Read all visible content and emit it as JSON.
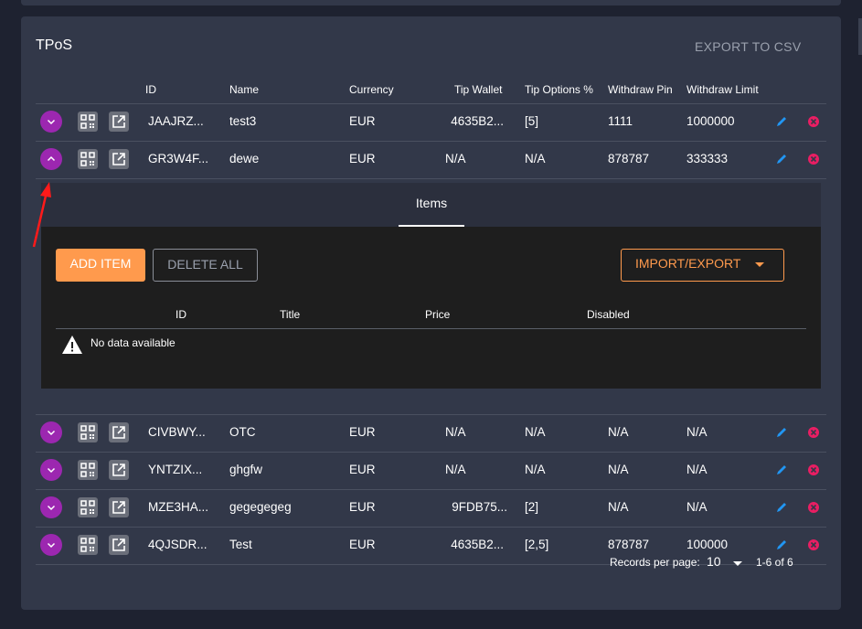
{
  "card": {
    "title": "TPoS",
    "export_label": "EXPORT TO CSV"
  },
  "table": {
    "headers": [
      "ID",
      "Name",
      "Currency",
      "Tip Wallet",
      "Tip Options %",
      "Withdraw Pin",
      "Withdraw Limit"
    ],
    "rows": [
      {
        "id": "JAAJRZ...",
        "name": "test3",
        "currency": "EUR",
        "tip_wallet": "4635B2...",
        "tip_options": "[5]",
        "withdraw_pin": "1111",
        "withdraw_limit": "1000000"
      },
      {
        "id": "GR3W4F...",
        "name": "dewe",
        "currency": "EUR",
        "tip_wallet": "N/A",
        "tip_options": "N/A",
        "withdraw_pin": "878787",
        "withdraw_limit": "333333"
      },
      {
        "id": "CIVBWY...",
        "name": "OTC",
        "currency": "EUR",
        "tip_wallet": "N/A",
        "tip_options": "N/A",
        "withdraw_pin": "N/A",
        "withdraw_limit": "N/A"
      },
      {
        "id": "YNTZIX...",
        "name": "ghgfw",
        "currency": "EUR",
        "tip_wallet": "N/A",
        "tip_options": "N/A",
        "withdraw_pin": "N/A",
        "withdraw_limit": "N/A"
      },
      {
        "id": "MZE3HA...",
        "name": "gegegegeg",
        "currency": "EUR",
        "tip_wallet": "9FDB75...",
        "tip_options": "[2]",
        "withdraw_pin": "N/A",
        "withdraw_limit": "N/A"
      },
      {
        "id": "4QJSDR...",
        "name": "Test",
        "currency": "EUR",
        "tip_wallet": "4635B2...",
        "tip_options": "[2,5]",
        "withdraw_pin": "878787",
        "withdraw_limit": "100000"
      }
    ]
  },
  "expanded": {
    "tab_label": "Items",
    "add_label": "ADD ITEM",
    "delete_all_label": "DELETE ALL",
    "import_export_label": "IMPORT/EXPORT",
    "headers": [
      "ID",
      "Title",
      "Price",
      "Disabled"
    ],
    "no_data": "No data available"
  },
  "footer": {
    "records_label": "Records per page:",
    "per_page": "10",
    "range": "1-6 of 6"
  },
  "colors": {
    "accent_purple": "#9c27b0",
    "accent_orange": "#ff9a4d",
    "delete_pink": "#e91e63",
    "edit_blue": "#2196f3",
    "annotation_red": "#ff1a1a"
  },
  "icons": {
    "expand": "chevron-down-icon",
    "collapse": "chevron-up-icon",
    "qr": "qr-code-icon",
    "open": "open-in-new-icon",
    "edit": "pencil-icon",
    "delete": "cancel-circle-icon",
    "warning": "warning-icon"
  }
}
